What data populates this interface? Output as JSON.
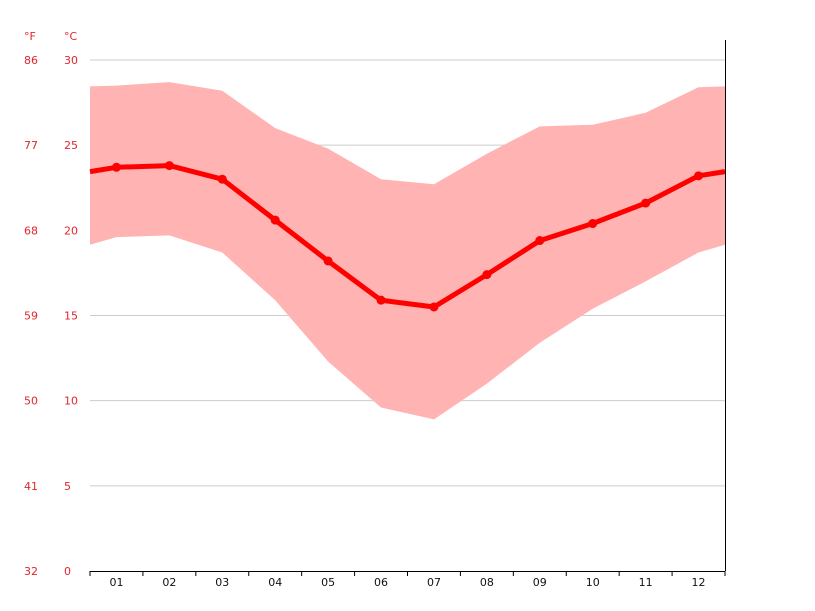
{
  "chart_data": {
    "type": "line",
    "categories": [
      "01",
      "02",
      "03",
      "04",
      "05",
      "06",
      "07",
      "08",
      "09",
      "10",
      "11",
      "12"
    ],
    "series": [
      {
        "values": [
          23.7,
          23.8,
          23.0,
          20.6,
          18.2,
          15.9,
          15.5,
          17.4,
          19.4,
          20.4,
          21.6,
          23.2
        ]
      }
    ],
    "band": {
      "high": [
        28.5,
        28.7,
        28.2,
        26.0,
        24.8,
        23.0,
        22.7,
        24.5,
        26.1,
        26.2,
        26.9,
        28.4
      ],
      "low": [
        19.6,
        19.7,
        18.7,
        15.9,
        12.3,
        9.6,
        8.9,
        11.0,
        13.4,
        15.4,
        17.0,
        18.7
      ]
    },
    "ylim": [
      0,
      30
    ],
    "y_ticks_c": [
      "0",
      "5",
      "10",
      "15",
      "20",
      "25",
      "30"
    ],
    "y_ticks_f": [
      "32",
      "41",
      "50",
      "59",
      "68",
      "77",
      "86"
    ],
    "y_unit_f": "°F",
    "y_unit_c": "°C",
    "grid": true,
    "colors": {
      "line": "#ff0000",
      "band": "#ffb3b3",
      "axis_label": "#e0262c",
      "grid": "#cccccc",
      "axis": "#000000"
    }
  }
}
